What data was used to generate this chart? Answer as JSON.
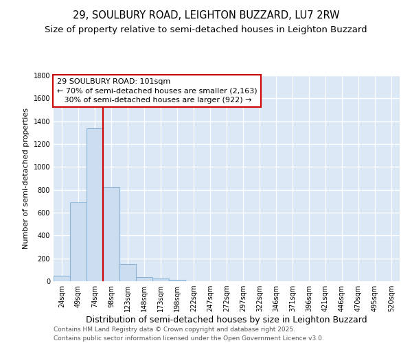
{
  "title1": "29, SOULBURY ROAD, LEIGHTON BUZZARD, LU7 2RW",
  "title2": "Size of property relative to semi-detached houses in Leighton Buzzard",
  "xlabel": "Distribution of semi-detached houses by size in Leighton Buzzard",
  "ylabel": "Number of semi-detached properties",
  "categories": [
    "24sqm",
    "49sqm",
    "74sqm",
    "98sqm",
    "123sqm",
    "148sqm",
    "173sqm",
    "198sqm",
    "222sqm",
    "247sqm",
    "272sqm",
    "297sqm",
    "322sqm",
    "346sqm",
    "371sqm",
    "396sqm",
    "421sqm",
    "446sqm",
    "470sqm",
    "495sqm",
    "520sqm"
  ],
  "values": [
    47,
    690,
    1340,
    820,
    150,
    35,
    25,
    10,
    0,
    0,
    0,
    0,
    0,
    0,
    0,
    0,
    0,
    0,
    0,
    0,
    0
  ],
  "bar_color": "#ccddf0",
  "bar_edge_color": "#8ab4d8",
  "vline_position": 2.5,
  "vline_color": "#cc0000",
  "annotation_line1": "29 SOULBURY ROAD: 101sqm",
  "annotation_line2": "← 70% of semi-detached houses are smaller (2,163)",
  "annotation_line3": "   30% of semi-detached houses are larger (922) →",
  "annotation_box_color": "#cc0000",
  "ylim": [
    0,
    1800
  ],
  "yticks": [
    0,
    200,
    400,
    600,
    800,
    1000,
    1200,
    1400,
    1600,
    1800
  ],
  "bg_color": "#dce8f5",
  "grid_color": "#ffffff",
  "footer1": "Contains HM Land Registry data © Crown copyright and database right 2025.",
  "footer2": "Contains public sector information licensed under the Open Government Licence v3.0.",
  "title1_fontsize": 10.5,
  "title2_fontsize": 9.5,
  "xlabel_fontsize": 9,
  "ylabel_fontsize": 8,
  "tick_fontsize": 7,
  "annotation_fontsize": 8,
  "footer_fontsize": 6.5
}
